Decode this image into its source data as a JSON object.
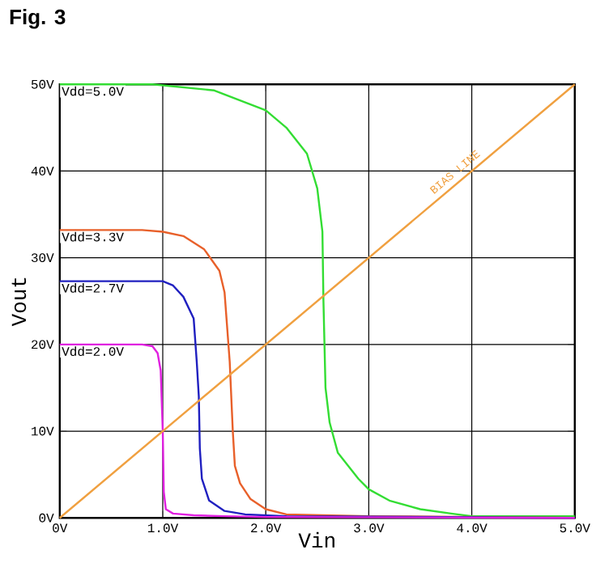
{
  "chart_data": {
    "type": "line",
    "title": "Fig. 3",
    "xlabel": "Vin",
    "ylabel": "Vout",
    "xlim": [
      0,
      5
    ],
    "ylim": [
      0,
      50
    ],
    "xticks": [
      {
        "value": 0,
        "label": "0V"
      },
      {
        "value": 1,
        "label": "1.0V"
      },
      {
        "value": 2,
        "label": "2.0V"
      },
      {
        "value": 3,
        "label": "3.0V"
      },
      {
        "value": 4,
        "label": "4.0V"
      },
      {
        "value": 5,
        "label": "5.0V"
      }
    ],
    "yticks": [
      {
        "value": 0,
        "label": "0V"
      },
      {
        "value": 10,
        "label": "10V"
      },
      {
        "value": 20,
        "label": "20V"
      },
      {
        "value": 30,
        "label": "30V"
      },
      {
        "value": 40,
        "label": "40V"
      },
      {
        "value": 50,
        "label": "50V"
      }
    ],
    "grid": true,
    "series": [
      {
        "name": "Vdd=5.0V",
        "color": "#33dd33",
        "x": [
          0,
          0.9,
          1.5,
          2.0,
          2.2,
          2.4,
          2.5,
          2.55,
          2.56,
          2.58,
          2.62,
          2.7,
          2.9,
          3.0,
          3.2,
          3.5,
          3.8,
          4.0,
          5.0
        ],
        "values": [
          50,
          50,
          49.3,
          47,
          45,
          42,
          38,
          33,
          25,
          15,
          11,
          7.5,
          4.5,
          3.3,
          2,
          1,
          0.5,
          0.2,
          0.2
        ]
      },
      {
        "name": "Vdd=3.3V",
        "color": "#e8602a",
        "x": [
          0,
          0.8,
          1.0,
          1.2,
          1.4,
          1.55,
          1.6,
          1.65,
          1.68,
          1.7,
          1.75,
          1.85,
          2.0,
          2.2,
          3.0,
          5.0
        ],
        "values": [
          33.2,
          33.2,
          33,
          32.5,
          31,
          28.5,
          26,
          18,
          10,
          6,
          4,
          2.2,
          1,
          0.4,
          0.2,
          0
        ]
      },
      {
        "name": "Vdd=2.7V",
        "color": "#2020c0",
        "x": [
          0,
          1.0,
          1.1,
          1.2,
          1.3,
          1.33,
          1.35,
          1.36,
          1.38,
          1.45,
          1.6,
          1.8,
          2.2,
          5.0
        ],
        "values": [
          27.3,
          27.3,
          26.8,
          25.5,
          23,
          18,
          14,
          8,
          4.5,
          2,
          0.8,
          0.4,
          0.2,
          0
        ]
      },
      {
        "name": "Vdd=2.0V",
        "color": "#e020e0",
        "x": [
          0,
          0.8,
          0.9,
          0.95,
          0.98,
          1.0,
          1.01,
          1.03,
          1.1,
          1.3,
          1.6,
          2.0,
          5.0
        ],
        "values": [
          20,
          20,
          19.8,
          19,
          17,
          10,
          3,
          1,
          0.5,
          0.3,
          0.2,
          0.1,
          0
        ]
      },
      {
        "name": "BIAS LINE",
        "color": "#f0a040",
        "x": [
          0,
          5
        ],
        "values": [
          0,
          50
        ]
      }
    ]
  }
}
